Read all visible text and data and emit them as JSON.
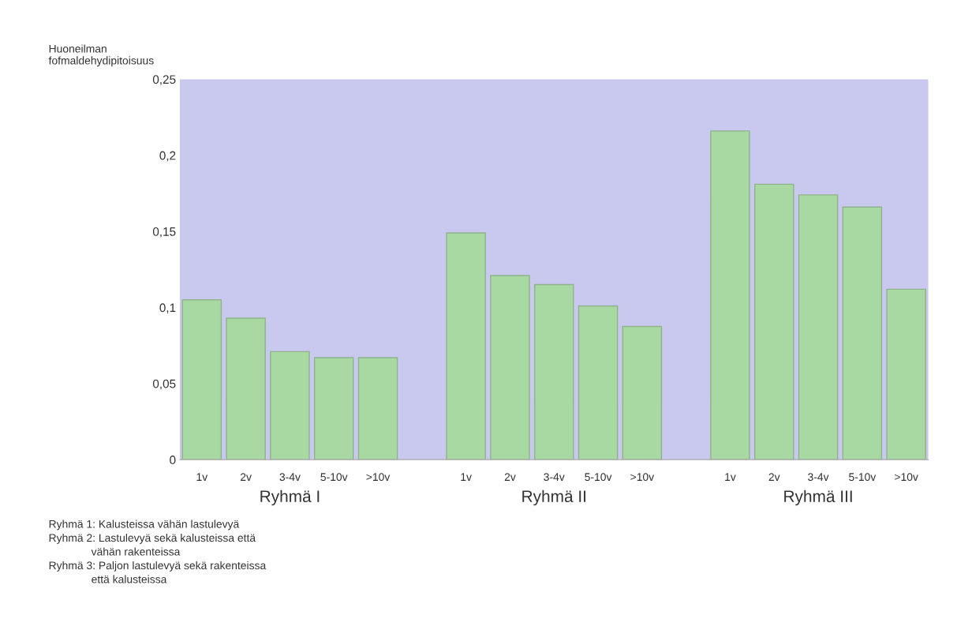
{
  "chart_data": {
    "type": "bar",
    "ylabel": "Huoneilman\nfofmaldehydipitoisuus",
    "categories": [
      "1v",
      "2v",
      "3-4v",
      "5-10v",
      ">10v",
      null,
      "1v",
      "2v",
      "3-4v",
      "5-10v",
      ">10v",
      null,
      "1v",
      "2v",
      "3-4v",
      "5-10v",
      ">10v"
    ],
    "values": [
      0.105,
      0.093,
      0.071,
      0.067,
      0.067,
      null,
      0.149,
      0.121,
      0.115,
      0.101,
      0.0875,
      null,
      0.216,
      0.181,
      0.174,
      0.166,
      0.112
    ],
    "color": "#a9d9a3",
    "ylim": [
      0,
      0.25
    ],
    "yticks": [
      0,
      {
        "value": 0.05,
        "label": "0,05"
      },
      {
        "value": 0.1,
        "label": "0,1"
      },
      {
        "value": 0.15,
        "label": "0,15"
      },
      {
        "value": 0.2,
        "label": "0,2"
      },
      {
        "value": 0.25,
        "label": "0,25"
      }
    ],
    "grid": false,
    "legend": false,
    "annotations": [
      "Ryhmä I",
      "Ryhmä II",
      "Ryhmä III",
      "Ryhmä 1: Kalusteissa vähän lastulevyä\nRyhmä 2: Lastulevyä sekä kalusteissa että\n              vähän rakenteissa\nRyhmä 3: Paljon lastulevyä sekä rakenteissa\n              että kalusteissa"
    ]
  }
}
